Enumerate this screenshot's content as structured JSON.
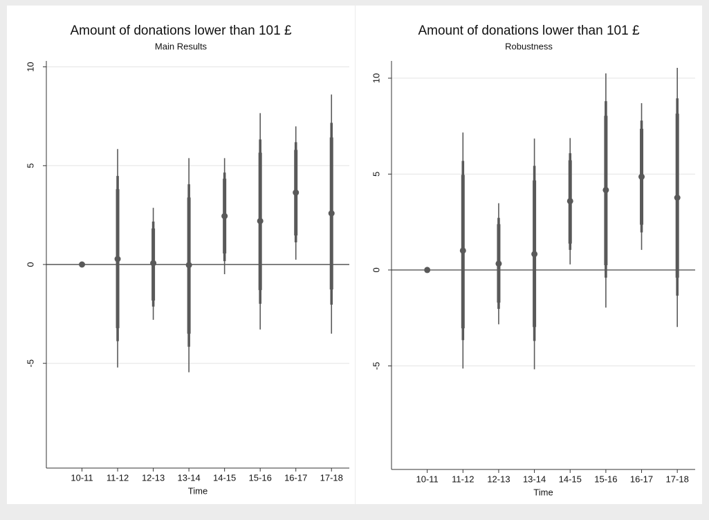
{
  "chart_data": [
    {
      "type": "errorbar",
      "title": "Amount of donations lower than 101 £",
      "subtitle": "Main Results",
      "xlabel": "Time",
      "categories": [
        "10-11",
        "11-12",
        "12-13",
        "13-14",
        "14-15",
        "15-16",
        "16-17",
        "17-18"
      ],
      "values": [
        0,
        0.28,
        0.07,
        -0.03,
        2.45,
        2.2,
        3.64,
        2.59
      ],
      "intervals": [
        {
          "low": [
            0,
            -5.21,
            -2.8,
            -5.45,
            -0.49,
            -3.29,
            0.24,
            -3.5
          ],
          "high": [
            0,
            5.84,
            2.87,
            5.38,
            5.38,
            7.66,
            6.99,
            8.6
          ]
        },
        {
          "low": [
            0,
            -3.88,
            -2.13,
            -4.16,
            0.17,
            -1.99,
            1.12,
            -2.03
          ],
          "high": [
            0,
            4.48,
            2.17,
            4.06,
            4.65,
            6.33,
            6.19,
            7.17
          ]
        },
        {
          "low": [
            0,
            -3.22,
            -1.82,
            -3.5,
            0.56,
            -1.29,
            1.47,
            -1.26
          ],
          "high": [
            0,
            3.81,
            1.82,
            3.39,
            4.34,
            5.66,
            5.8,
            6.43
          ]
        }
      ],
      "color": "#595959",
      "ylim": [
        -10.3,
        10.3
      ],
      "yticks": [
        -5,
        0,
        5,
        10
      ],
      "yline": 0,
      "grid": true
    },
    {
      "type": "errorbar",
      "title": "Amount of donations lower than 101 £",
      "subtitle": "Robustness",
      "xlabel": "Time",
      "categories": [
        "10-11",
        "11-12",
        "12-13",
        "13-14",
        "14-15",
        "15-16",
        "16-17",
        "17-18"
      ],
      "values": [
        0,
        1.01,
        0.33,
        0.83,
        3.59,
        4.17,
        4.86,
        3.77
      ],
      "intervals": [
        {
          "low": [
            0,
            -5.14,
            -2.83,
            -5.18,
            0.29,
            -1.96,
            1.05,
            -2.97
          ],
          "high": [
            0,
            7.17,
            3.48,
            6.85,
            6.88,
            10.25,
            8.7,
            10.54
          ]
        },
        {
          "low": [
            0,
            -3.66,
            -2.03,
            -3.7,
            1.05,
            -0.4,
            1.96,
            -1.34
          ],
          "high": [
            0,
            5.69,
            2.72,
            5.43,
            6.09,
            8.8,
            7.79,
            8.95
          ]
        },
        {
          "low": [
            0,
            -3.04,
            -1.7,
            -2.97,
            1.38,
            0.25,
            2.36,
            -0.4
          ],
          "high": [
            0,
            4.96,
            2.39,
            4.67,
            5.72,
            8.04,
            7.36,
            8.15
          ]
        }
      ],
      "color": "#595959",
      "ylim": [
        -10.4,
        10.9
      ],
      "yticks": [
        -5,
        0,
        5,
        10
      ],
      "yline": 0,
      "grid": true
    }
  ]
}
